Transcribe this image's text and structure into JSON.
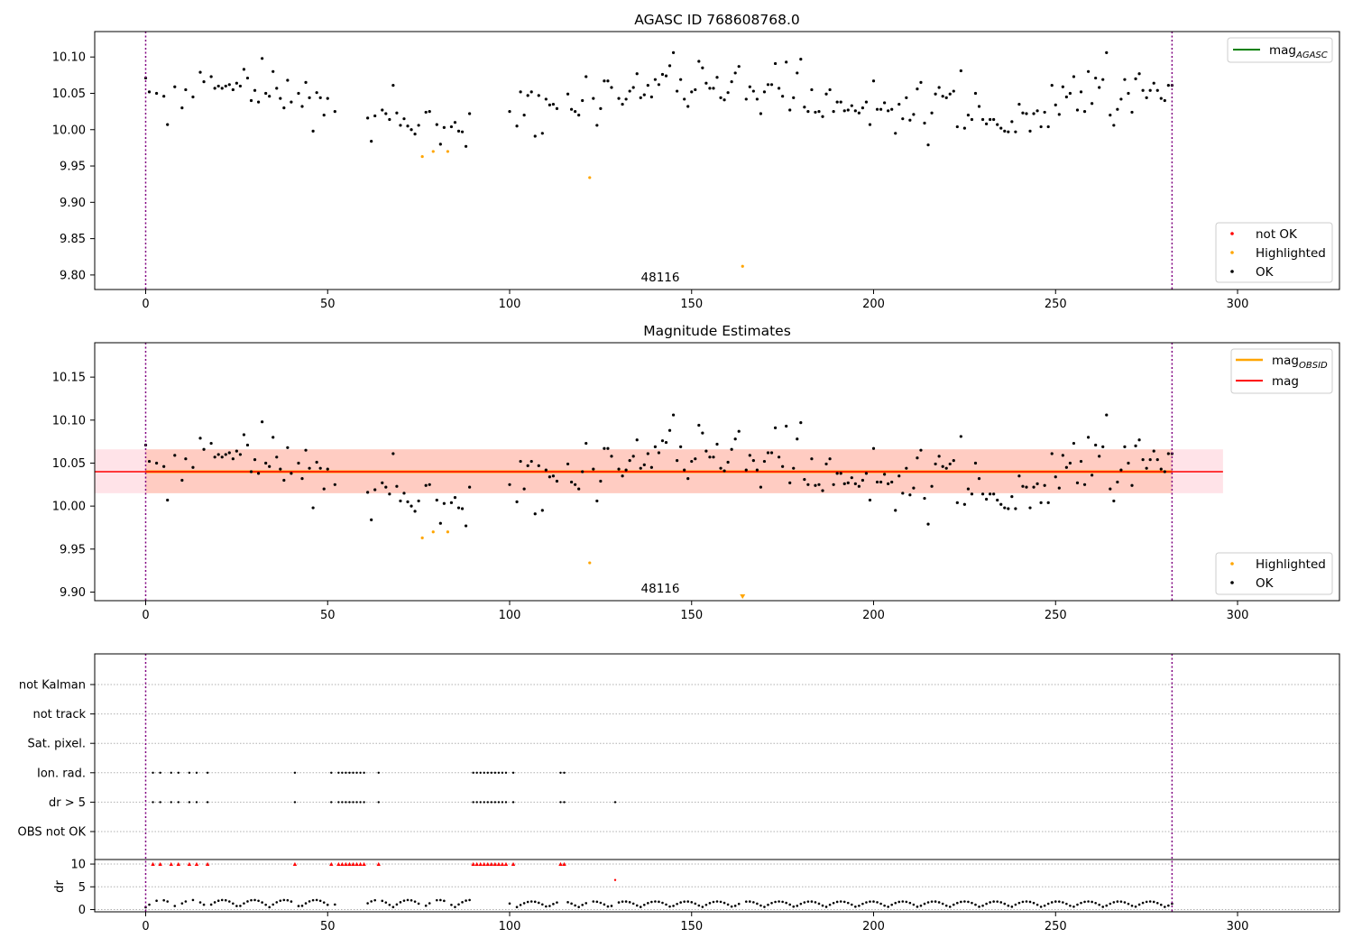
{
  "chart_data": [
    {
      "type": "scatter",
      "title": "AGASC ID 768608768.0",
      "xlim": [
        -14,
        328
      ],
      "ylim": [
        9.78,
        10.135
      ],
      "xticks": [
        0,
        50,
        100,
        150,
        200,
        250,
        300
      ],
      "yticks": [
        9.8,
        9.85,
        9.9,
        9.95,
        10.0,
        10.05,
        10.1
      ],
      "vlines": [
        0,
        282
      ],
      "annotation": {
        "text": "48116",
        "x": 141,
        "y": 9.79
      },
      "legend_lines": [
        {
          "name": "mag",
          "sub": "AGASC",
          "color": "#008000"
        }
      ],
      "legend_points": [
        {
          "name": "not OK",
          "color": "#ff0000"
        },
        {
          "name": "Highlighted",
          "color": "#ffa500"
        },
        {
          "name": "OK",
          "color": "#000000"
        }
      ],
      "highlighted": [
        [
          76,
          9.963
        ],
        [
          79,
          9.97
        ],
        [
          83,
          9.97
        ],
        [
          122,
          9.934
        ],
        [
          164,
          9.812
        ]
      ],
      "ok_points": [
        [
          0,
          10.071
        ],
        [
          1,
          10.052
        ],
        [
          3,
          10.05
        ],
        [
          5,
          10.046
        ],
        [
          6,
          10.007
        ],
        [
          8,
          10.059
        ],
        [
          10,
          10.03
        ],
        [
          11,
          10.055
        ],
        [
          13,
          10.045
        ],
        [
          15,
          10.079
        ],
        [
          16,
          10.066
        ],
        [
          18,
          10.073
        ],
        [
          19,
          10.057
        ],
        [
          20,
          10.06
        ],
        [
          21,
          10.057
        ],
        [
          22,
          10.06
        ],
        [
          23,
          10.062
        ],
        [
          24,
          10.055
        ],
        [
          25,
          10.064
        ],
        [
          26,
          10.06
        ],
        [
          27,
          10.083
        ],
        [
          28,
          10.071
        ],
        [
          29,
          10.04
        ],
        [
          30,
          10.054
        ],
        [
          31,
          10.038
        ],
        [
          32,
          10.098
        ],
        [
          33,
          10.05
        ],
        [
          34,
          10.046
        ],
        [
          35,
          10.08
        ],
        [
          36,
          10.057
        ],
        [
          37,
          10.043
        ],
        [
          38,
          10.03
        ],
        [
          39,
          10.068
        ],
        [
          40,
          10.038
        ],
        [
          42,
          10.05
        ],
        [
          43,
          10.032
        ],
        [
          44,
          10.065
        ],
        [
          45,
          10.044
        ],
        [
          46,
          9.998
        ],
        [
          47,
          10.051
        ],
        [
          48,
          10.044
        ],
        [
          49,
          10.02
        ],
        [
          50,
          10.043
        ],
        [
          52,
          10.025
        ],
        [
          61,
          10.016
        ],
        [
          62,
          9.984
        ],
        [
          63,
          10.019
        ],
        [
          65,
          10.027
        ],
        [
          66,
          10.022
        ],
        [
          67,
          10.014
        ],
        [
          68,
          10.061
        ],
        [
          69,
          10.023
        ],
        [
          70,
          10.006
        ],
        [
          71,
          10.015
        ],
        [
          72,
          10.005
        ],
        [
          73,
          10.0
        ],
        [
          74,
          9.994
        ],
        [
          75,
          10.006
        ],
        [
          77,
          10.024
        ],
        [
          78,
          10.025
        ],
        [
          80,
          10.007
        ],
        [
          81,
          9.98
        ],
        [
          82,
          10.003
        ],
        [
          84,
          10.004
        ],
        [
          85,
          10.01
        ],
        [
          86,
          9.998
        ],
        [
          87,
          9.997
        ],
        [
          88,
          9.977
        ],
        [
          89,
          10.022
        ],
        [
          100,
          10.025
        ],
        [
          102,
          10.005
        ],
        [
          103,
          10.052
        ],
        [
          104,
          10.02
        ],
        [
          105,
          10.047
        ],
        [
          106,
          10.052
        ],
        [
          107,
          9.991
        ],
        [
          108,
          10.047
        ],
        [
          109,
          9.995
        ],
        [
          110,
          10.042
        ],
        [
          111,
          10.034
        ],
        [
          112,
          10.035
        ],
        [
          113,
          10.029
        ],
        [
          116,
          10.049
        ],
        [
          117,
          10.028
        ],
        [
          118,
          10.025
        ],
        [
          119,
          10.02
        ],
        [
          120,
          10.04
        ],
        [
          121,
          10.073
        ],
        [
          123,
          10.043
        ],
        [
          124,
          10.006
        ],
        [
          125,
          10.029
        ],
        [
          126,
          10.067
        ],
        [
          127,
          10.067
        ],
        [
          128,
          10.058
        ],
        [
          130,
          10.043
        ],
        [
          131,
          10.035
        ],
        [
          132,
          10.042
        ],
        [
          133,
          10.053
        ],
        [
          134,
          10.058
        ],
        [
          135,
          10.077
        ],
        [
          136,
          10.044
        ],
        [
          137,
          10.048
        ],
        [
          138,
          10.061
        ],
        [
          139,
          10.045
        ],
        [
          140,
          10.069
        ],
        [
          141,
          10.062
        ],
        [
          142,
          10.076
        ],
        [
          143,
          10.074
        ],
        [
          144,
          10.088
        ],
        [
          145,
          10.106
        ],
        [
          146,
          10.053
        ],
        [
          147,
          10.069
        ],
        [
          148,
          10.042
        ],
        [
          149,
          10.032
        ],
        [
          150,
          10.052
        ],
        [
          151,
          10.055
        ],
        [
          152,
          10.094
        ],
        [
          153,
          10.085
        ],
        [
          154,
          10.064
        ],
        [
          155,
          10.057
        ],
        [
          156,
          10.057
        ],
        [
          157,
          10.072
        ],
        [
          158,
          10.044
        ],
        [
          159,
          10.041
        ],
        [
          160,
          10.051
        ],
        [
          161,
          10.066
        ],
        [
          162,
          10.078
        ],
        [
          163,
          10.087
        ],
        [
          165,
          10.042
        ],
        [
          166,
          10.059
        ],
        [
          167,
          10.053
        ],
        [
          168,
          10.042
        ],
        [
          169,
          10.022
        ],
        [
          170,
          10.052
        ],
        [
          171,
          10.062
        ],
        [
          172,
          10.062
        ],
        [
          173,
          10.091
        ],
        [
          174,
          10.057
        ],
        [
          175,
          10.046
        ],
        [
          176,
          10.093
        ],
        [
          177,
          10.027
        ],
        [
          178,
          10.044
        ],
        [
          179,
          10.078
        ],
        [
          180,
          10.097
        ],
        [
          181,
          10.031
        ],
        [
          182,
          10.025
        ],
        [
          183,
          10.055
        ],
        [
          184,
          10.024
        ],
        [
          185,
          10.025
        ],
        [
          186,
          10.018
        ],
        [
          187,
          10.049
        ],
        [
          188,
          10.055
        ],
        [
          189,
          10.025
        ],
        [
          190,
          10.038
        ],
        [
          191,
          10.038
        ],
        [
          192,
          10.026
        ],
        [
          193,
          10.027
        ],
        [
          194,
          10.033
        ],
        [
          195,
          10.026
        ],
        [
          196,
          10.023
        ],
        [
          197,
          10.03
        ],
        [
          198,
          10.038
        ],
        [
          199,
          10.007
        ],
        [
          200,
          10.067
        ],
        [
          201,
          10.028
        ],
        [
          202,
          10.028
        ],
        [
          203,
          10.037
        ],
        [
          204,
          10.026
        ],
        [
          205,
          10.028
        ],
        [
          206,
          9.995
        ],
        [
          207,
          10.035
        ],
        [
          208,
          10.015
        ],
        [
          209,
          10.044
        ],
        [
          210,
          10.013
        ],
        [
          211,
          10.021
        ],
        [
          212,
          10.056
        ],
        [
          213,
          10.065
        ],
        [
          214,
          10.009
        ],
        [
          215,
          9.979
        ],
        [
          216,
          10.023
        ],
        [
          217,
          10.049
        ],
        [
          218,
          10.058
        ],
        [
          219,
          10.046
        ],
        [
          220,
          10.044
        ],
        [
          221,
          10.049
        ],
        [
          222,
          10.053
        ],
        [
          223,
          10.004
        ],
        [
          224,
          10.081
        ],
        [
          225,
          10.002
        ],
        [
          226,
          10.02
        ],
        [
          227,
          10.014
        ],
        [
          228,
          10.05
        ],
        [
          229,
          10.032
        ],
        [
          230,
          10.014
        ],
        [
          231,
          10.008
        ],
        [
          232,
          10.014
        ],
        [
          233,
          10.014
        ],
        [
          234,
          10.007
        ],
        [
          235,
          10.002
        ],
        [
          236,
          9.998
        ],
        [
          237,
          9.997
        ],
        [
          238,
          10.011
        ],
        [
          239,
          9.997
        ],
        [
          240,
          10.035
        ],
        [
          241,
          10.023
        ],
        [
          242,
          10.022
        ],
        [
          243,
          9.998
        ],
        [
          244,
          10.022
        ],
        [
          245,
          10.026
        ],
        [
          246,
          10.004
        ],
        [
          247,
          10.024
        ],
        [
          248,
          10.004
        ],
        [
          249,
          10.061
        ],
        [
          250,
          10.034
        ],
        [
          251,
          10.021
        ],
        [
          252,
          10.059
        ],
        [
          253,
          10.045
        ],
        [
          254,
          10.05
        ],
        [
          255,
          10.073
        ],
        [
          256,
          10.027
        ],
        [
          257,
          10.052
        ],
        [
          258,
          10.025
        ],
        [
          259,
          10.08
        ],
        [
          260,
          10.036
        ],
        [
          261,
          10.071
        ],
        [
          262,
          10.058
        ],
        [
          263,
          10.069
        ],
        [
          264,
          10.106
        ],
        [
          265,
          10.02
        ],
        [
          266,
          10.006
        ],
        [
          267,
          10.028
        ],
        [
          268,
          10.042
        ],
        [
          269,
          10.069
        ],
        [
          270,
          10.05
        ],
        [
          271,
          10.024
        ],
        [
          272,
          10.07
        ],
        [
          273,
          10.077
        ],
        [
          274,
          10.054
        ],
        [
          275,
          10.044
        ],
        [
          276,
          10.054
        ],
        [
          277,
          10.064
        ],
        [
          278,
          10.054
        ],
        [
          279,
          10.043
        ],
        [
          280,
          10.04
        ],
        [
          281,
          10.061
        ],
        [
          282,
          10.061
        ]
      ]
    },
    {
      "type": "scatter",
      "title": "Magnitude Estimates",
      "xlim": [
        -14,
        328
      ],
      "ylim": [
        9.89,
        10.19
      ],
      "xticks": [
        0,
        50,
        100,
        150,
        200,
        250,
        300
      ],
      "yticks": [
        9.9,
        9.95,
        10.0,
        10.05,
        10.1,
        10.15
      ],
      "vlines": [
        0,
        282
      ],
      "annotation": {
        "text": "48116",
        "x": 141,
        "y": 9.902
      },
      "mag_obsid": 10.04,
      "mag": 10.04,
      "band_outer": [
        10.015,
        10.066
      ],
      "band_inner": [
        10.015,
        10.066
      ],
      "band_x": [
        -14,
        296
      ],
      "obsid_x": [
        0,
        282
      ],
      "legend_lines": [
        {
          "name": "mag",
          "sub": "OBSID",
          "color": "#ffa500"
        },
        {
          "name": "mag",
          "sub": "",
          "color": "#ff0000"
        }
      ],
      "legend_points": [
        {
          "name": "Highlighted",
          "color": "#ffa500"
        },
        {
          "name": "OK",
          "color": "#000000"
        }
      ],
      "highlighted_marker_below": {
        "x": 164,
        "y": 9.891
      }
    },
    {
      "type": "scatter",
      "xlim": [
        -14,
        328
      ],
      "xticks": [
        0,
        50,
        100,
        150,
        200,
        250,
        300
      ],
      "vlines": [
        0,
        282
      ],
      "flag_rows": [
        "not Kalman",
        "not track",
        "Sat. pixel.",
        "Ion. rad.",
        "dr > 5",
        "OBS not OK"
      ],
      "flags": {
        "Ion. rad.": [
          2,
          4,
          7,
          9,
          12,
          14,
          17,
          41,
          51,
          53,
          54,
          55,
          56,
          57,
          58,
          59,
          60,
          64,
          90,
          91,
          92,
          93,
          94,
          95,
          96,
          97,
          98,
          99,
          101,
          114,
          115
        ],
        "dr > 5": [
          2,
          4,
          7,
          9,
          12,
          14,
          17,
          41,
          51,
          53,
          54,
          55,
          56,
          57,
          58,
          59,
          60,
          64,
          90,
          91,
          92,
          93,
          94,
          95,
          96,
          97,
          98,
          99,
          101,
          114,
          115,
          129
        ]
      },
      "dr_ylabel": "dr",
      "dr_ylim": [
        -0.5,
        11
      ],
      "dr_yticks": [
        0,
        5,
        10
      ],
      "dr_capped": [
        2,
        4,
        7,
        9,
        12,
        14,
        17,
        41,
        51,
        53,
        54,
        55,
        56,
        57,
        58,
        59,
        60,
        64,
        90,
        91,
        92,
        93,
        94,
        95,
        96,
        97,
        98,
        99,
        101,
        114,
        115
      ],
      "dr_outlier": [
        129,
        6.5
      ]
    }
  ]
}
